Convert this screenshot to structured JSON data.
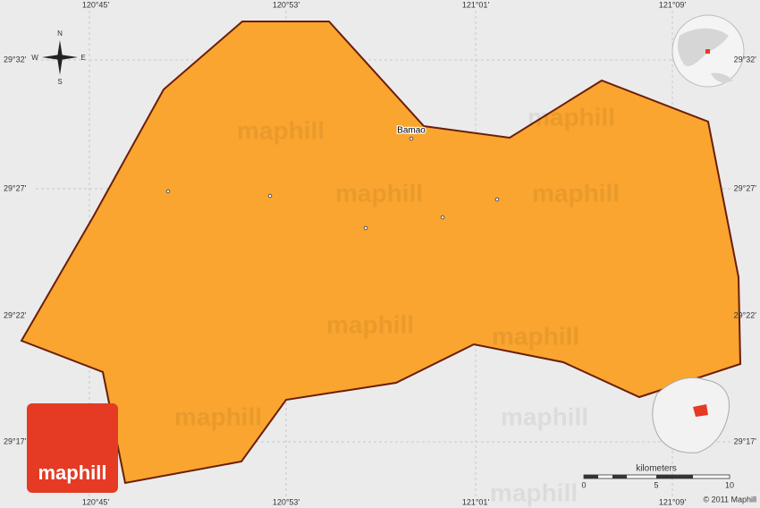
{
  "map": {
    "top_labels": [
      "120°45'",
      "120°53'",
      "121°01'",
      "121°09'"
    ],
    "bottom_labels": [
      "120°45'",
      "120°53'",
      "121°01'",
      "121°09'"
    ],
    "left_labels": [
      "29°32'",
      "29°27'",
      "29°22'",
      "29°17'"
    ],
    "right_labels": [
      "29°32'",
      "29°27'",
      "29°22'",
      "29°17'"
    ],
    "place": "Bamao",
    "compass": {
      "n": "N",
      "e": "E",
      "s": "S",
      "w": "W"
    },
    "scale": {
      "title": "kilometers",
      "ticks": [
        "0",
        "5",
        "10"
      ]
    },
    "copyright": "© 2011 Maphill",
    "logo": "maphill",
    "watermark": "maphill"
  }
}
